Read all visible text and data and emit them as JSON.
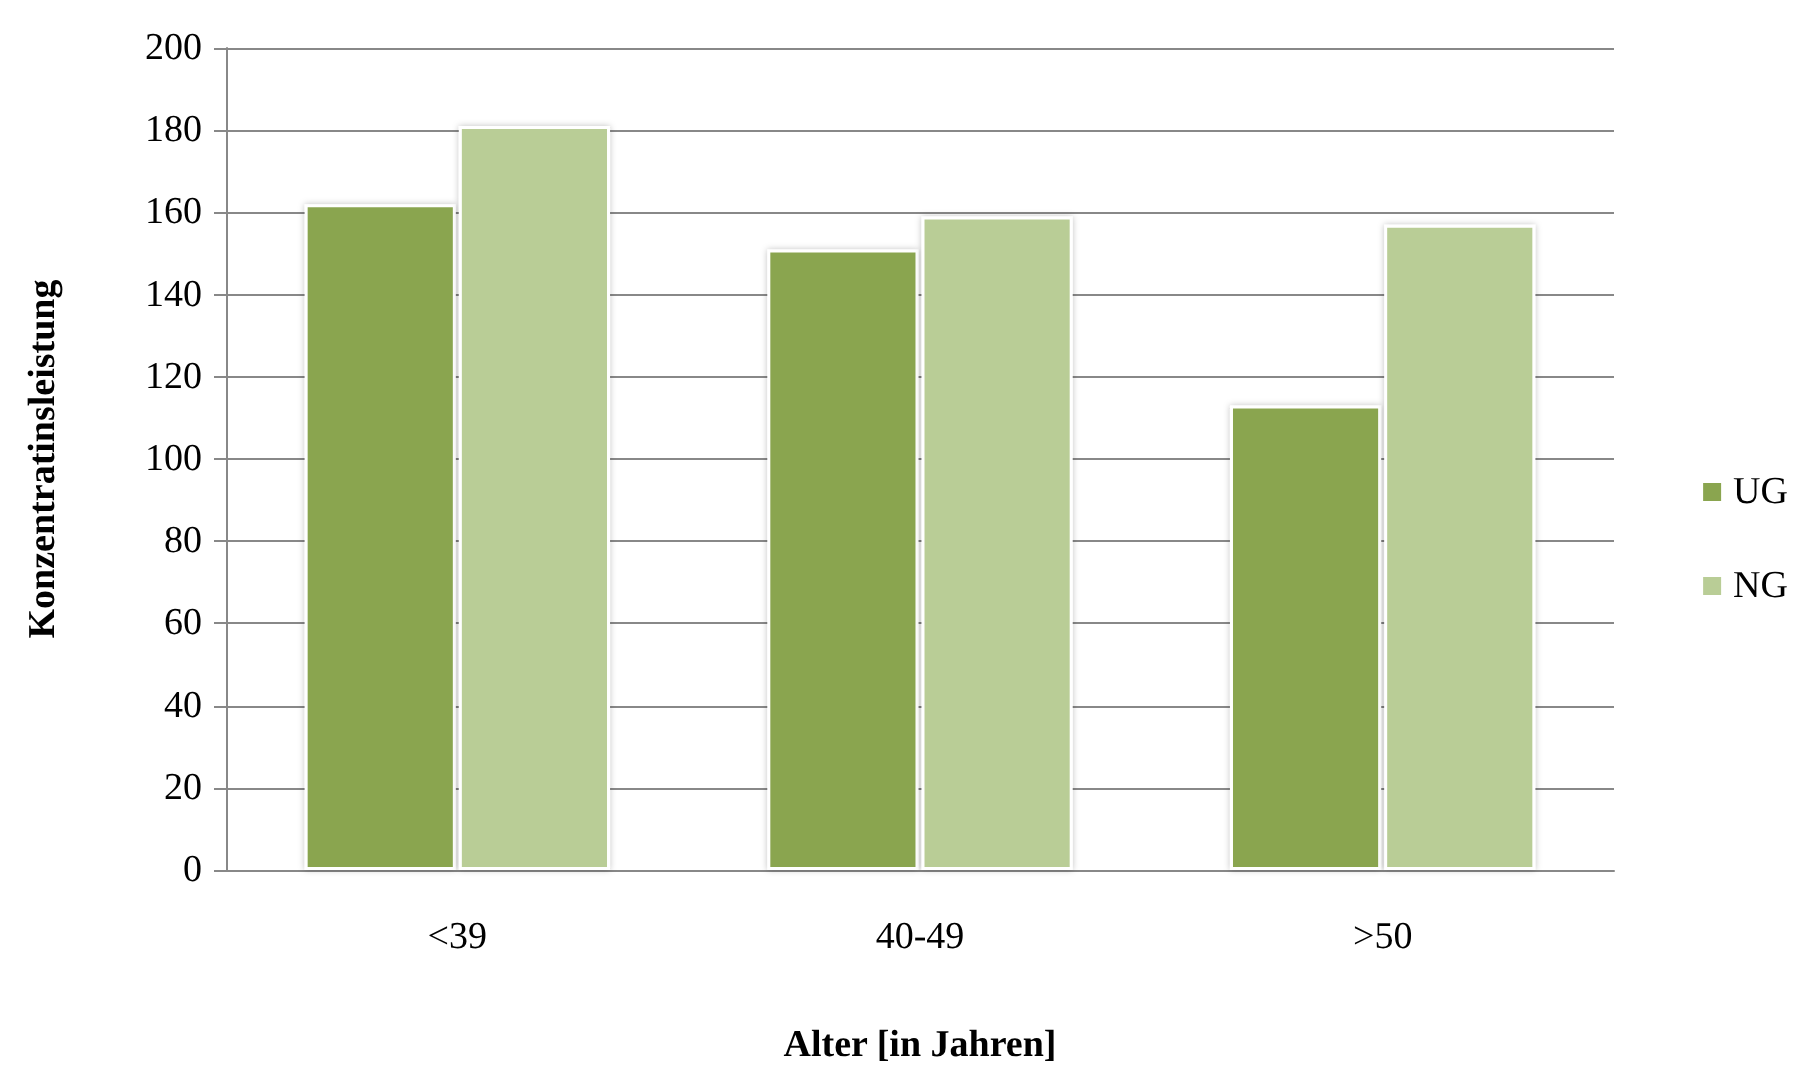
{
  "chart_data": {
    "type": "bar",
    "xlabel": "Alter [in Jahren]",
    "ylabel": "Konzentratinsleistung",
    "categories": [
      "<39",
      "40-49",
      ">50"
    ],
    "series": [
      {
        "name": "UG",
        "color": "#8aa54f",
        "values": [
          162,
          151,
          113
        ]
      },
      {
        "name": "NG",
        "color": "#b9cd96",
        "values": [
          181,
          159,
          157
        ]
      }
    ],
    "ylim": [
      0,
      200
    ],
    "yticks": [
      0,
      20,
      40,
      60,
      80,
      100,
      120,
      140,
      160,
      180,
      200
    ],
    "grid": "y",
    "legend": "right"
  }
}
